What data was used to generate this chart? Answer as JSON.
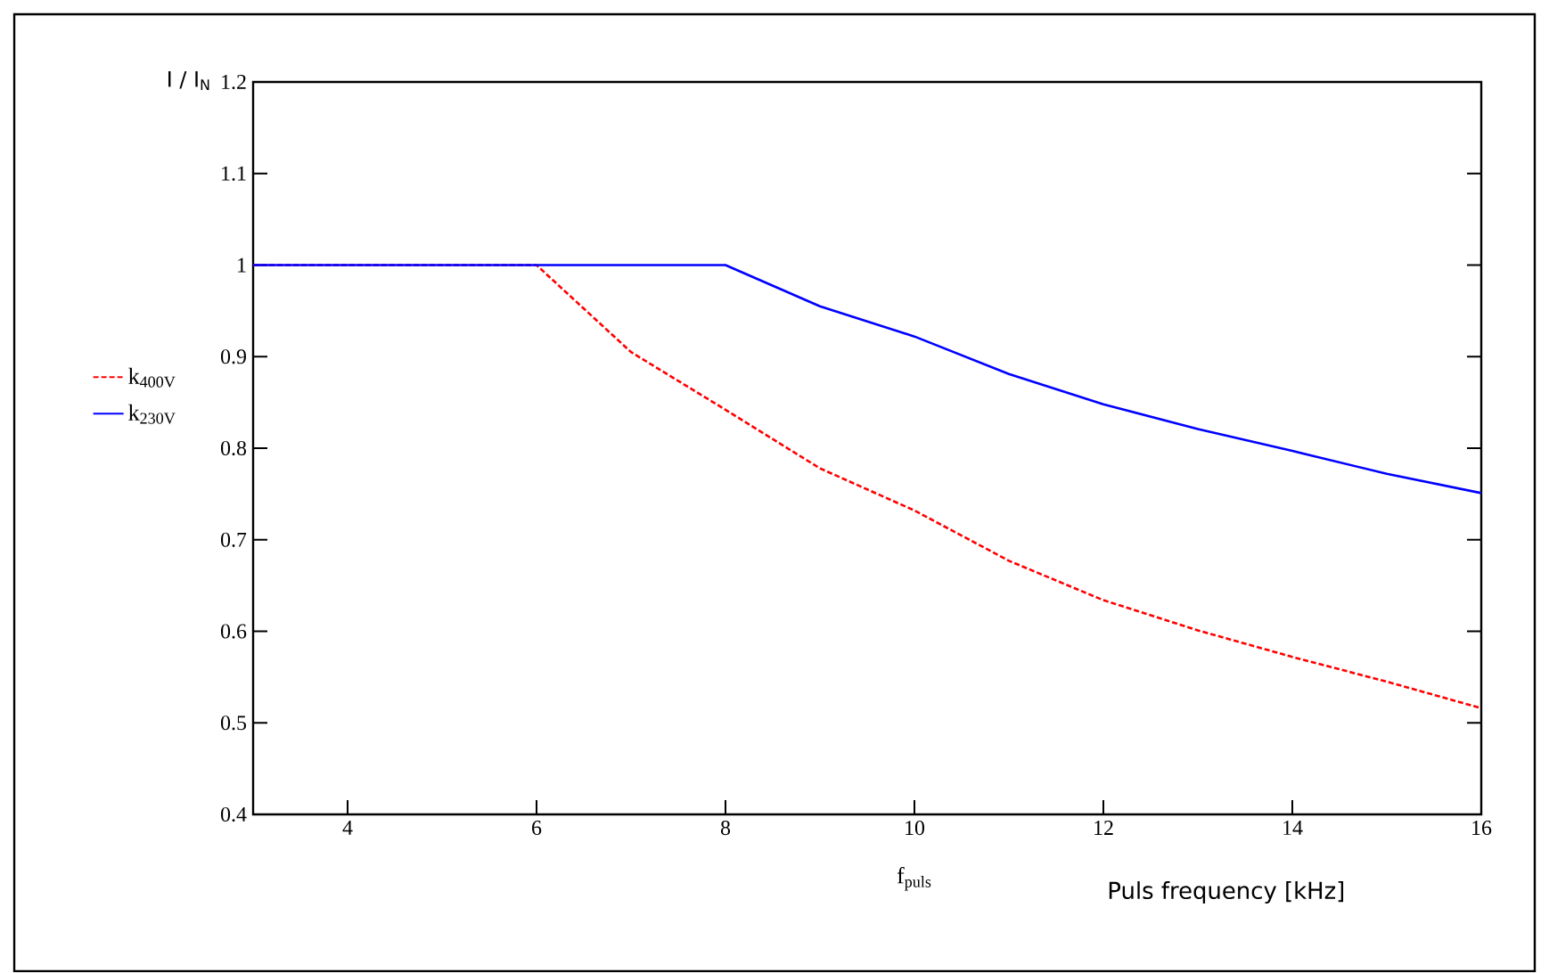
{
  "chart_data": {
    "type": "line",
    "xlabel": "f$_{puls}$",
    "ylabel": "I / I$_{N}$",
    "annotations": [
      "Puls frequency [kHz]"
    ],
    "xlim": [
      3,
      16
    ],
    "ylim": [
      0.4,
      1.2
    ],
    "xticks": [
      4,
      6,
      8,
      10,
      12,
      14,
      16
    ],
    "yticks": [
      0.4,
      0.5,
      0.6,
      0.7,
      0.8,
      0.9,
      1,
      1.1,
      1.2
    ],
    "legend": "left",
    "marker": "none",
    "grid": false,
    "series": [
      {
        "name": "k$_{400V}$",
        "color": "#ff0000",
        "line_style": "dashed",
        "x": [
          3,
          6,
          7,
          8,
          9,
          10,
          11,
          12,
          13,
          14,
          15,
          16
        ],
        "values": [
          1,
          1,
          0.905,
          0.842,
          0.778,
          0.732,
          0.677,
          0.634,
          0.601,
          0.572,
          0.545,
          0.516
        ]
      },
      {
        "name": "k$_{230V}$",
        "color": "#0000ff",
        "line_style": "solid",
        "x": [
          3,
          8,
          9,
          10,
          11,
          12,
          13,
          14,
          15,
          16
        ],
        "values": [
          1,
          1,
          0.955,
          0.922,
          0.881,
          0.848,
          0.821,
          0.797,
          0.772,
          0.751
        ]
      }
    ]
  }
}
